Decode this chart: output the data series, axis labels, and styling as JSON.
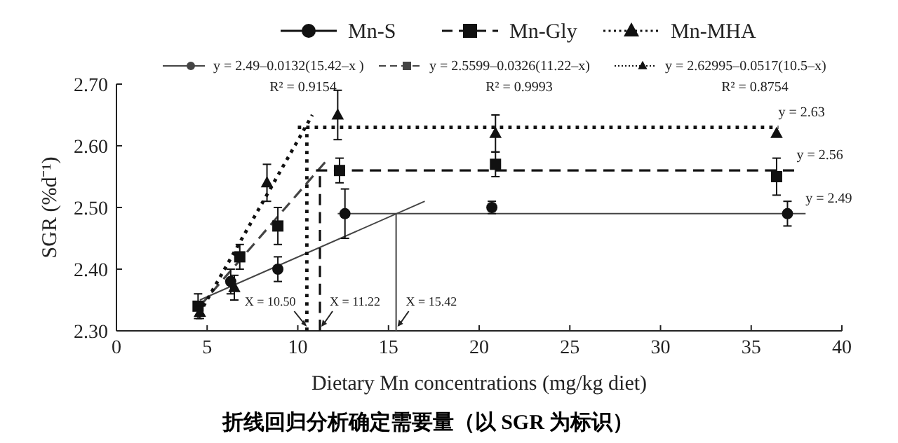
{
  "chart_data": {
    "type": "scatter",
    "title": "折线回归分析确定需要量（以 SGR 为标识）",
    "xlabel": "Dietary Mn concentrations  (mg/kg diet)",
    "ylabel": "SGR (%d⁻¹)",
    "xlim": [
      0,
      40
    ],
    "xticks": [
      0,
      5,
      10,
      15,
      20,
      25,
      30,
      35,
      40
    ],
    "ylim": [
      2.3,
      2.7
    ],
    "yticks": [
      {
        "value": 2.3,
        "label": "2.30"
      },
      {
        "value": 2.4,
        "label": "2.40"
      },
      {
        "value": 2.5,
        "label": "2.50"
      },
      {
        "value": 2.6,
        "label": "2.60"
      },
      {
        "value": 2.7,
        "label": "2.70"
      }
    ],
    "grid": false,
    "legend": "top",
    "series": [
      {
        "name": "Mn-S",
        "marker": "circle",
        "line_style": "solid",
        "color": "#111111",
        "x": [
          6.3,
          8.9,
          12.6,
          20.7,
          37.0
        ],
        "values": [
          2.38,
          2.4,
          2.49,
          2.5,
          2.49
        ],
        "errors": [
          0.02,
          0.02,
          0.04,
          0.01,
          0.02
        ]
      },
      {
        "name": "Mn-Gly",
        "marker": "square",
        "line_style": "dashed",
        "color": "#111111",
        "x": [
          4.5,
          6.8,
          8.9,
          12.3,
          20.9,
          36.4
        ],
        "values": [
          2.34,
          2.42,
          2.47,
          2.56,
          2.57,
          2.55
        ],
        "errors": [
          0.02,
          0.02,
          0.03,
          0.02,
          0.02,
          0.03
        ]
      },
      {
        "name": "Mn-MHA",
        "marker": "triangle",
        "line_style": "dotted",
        "color": "#111111",
        "x": [
          4.6,
          6.5,
          8.3,
          12.2,
          20.9,
          36.4
        ],
        "values": [
          2.33,
          2.37,
          2.54,
          2.65,
          2.62,
          2.62
        ],
        "errors": [
          0.01,
          0.02,
          0.03,
          0.04,
          0.03,
          null
        ]
      },
      {
        "name": "y = 2.49–0.0132(15.42–x )",
        "type": "line",
        "line_style": "solid",
        "color": "#444444",
        "x": [
          4.6,
          17
        ],
        "values": [
          2.35,
          2.51
        ]
      },
      {
        "name": "y = 2.5599–0.0326(11.22–x)",
        "type": "line",
        "line_style": "dashed",
        "color": "#444444",
        "x": [
          4.6,
          11.7
        ],
        "values": [
          2.34,
          2.58
        ]
      },
      {
        "name": "y = 2.62995–0.0517(10.5–x)",
        "type": "line",
        "line_style": "dotted",
        "color": "#111111",
        "x": [
          4.8,
          10.8
        ],
        "values": [
          2.34,
          2.65
        ]
      },
      {
        "type": "line",
        "line_style": "solid",
        "color": "#444444",
        "x": [
          12.2,
          38
        ],
        "values": [
          2.49,
          2.49
        ]
      },
      {
        "type": "line",
        "line_style": "dashed",
        "color": "#111111",
        "x": [
          11,
          37.5
        ],
        "values": [
          2.56,
          2.56
        ]
      },
      {
        "type": "line",
        "line_style": "dotted",
        "color": "#111111",
        "x": [
          10,
          36.5
        ],
        "values": [
          2.63,
          2.63
        ]
      },
      {
        "type": "line",
        "line_style": "solid",
        "color": "#444444",
        "x": [
          15.42,
          15.42
        ],
        "values": [
          2.3,
          2.49
        ]
      },
      {
        "type": "line",
        "line_style": "dashed",
        "color": "#111111",
        "x": [
          11.22,
          11.22
        ],
        "values": [
          2.3,
          2.56
        ]
      },
      {
        "type": "line",
        "line_style": "dotted",
        "color": "#111111",
        "x": [
          10.5,
          10.5
        ],
        "values": [
          2.3,
          2.63
        ]
      }
    ],
    "annotations": [
      "R² = 0.9154",
      "R² = 0.9993",
      "R² = 0.8754",
      {
        "text": "y = 2.63",
        "x": 36.5,
        "y": 2.63
      },
      {
        "text": "y = 2.56",
        "x": 37.5,
        "y": 2.56
      },
      {
        "text": "y = 2.49",
        "x": 38,
        "y": 2.49
      },
      {
        "text": "X = 10.50",
        "x": 10.5,
        "y": 2.3
      },
      {
        "text": "X = 11.22",
        "x": 11.22,
        "y": 2.3
      },
      {
        "text": "X = 15.42",
        "x": 15.42,
        "y": 2.3
      }
    ]
  }
}
